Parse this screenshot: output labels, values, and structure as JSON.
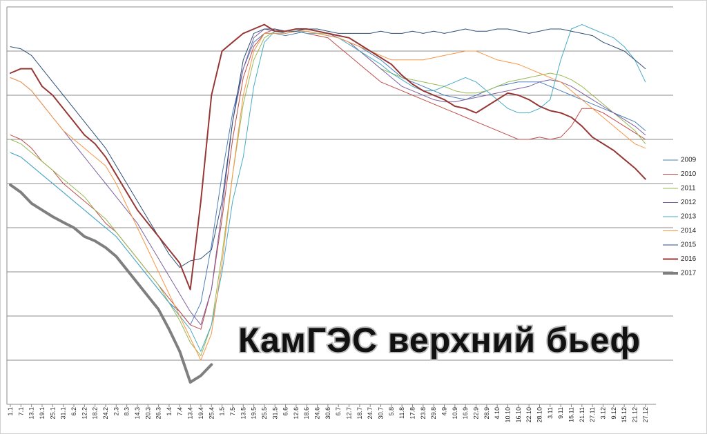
{
  "chart_data": {
    "type": "line",
    "title": "КамГЭС верхний бьеф",
    "categories": [
      "1.1",
      "7.1",
      "13.1",
      "19.1",
      "25.1",
      "31.1",
      "6.2",
      "12.2",
      "18.2",
      "24.2",
      "2.3",
      "8.3",
      "14.3",
      "20.3",
      "26.3",
      "1.4",
      "7.4",
      "13.4",
      "19.4",
      "25.4",
      "1.5",
      "7.5",
      "13.5",
      "19.5",
      "25.5",
      "31.5",
      "6.6",
      "12.6",
      "18.6",
      "24.6",
      "30.6",
      "6.7",
      "12.7",
      "18.7",
      "24.7",
      "30.7",
      "5.8",
      "11.8",
      "17.8",
      "23.8",
      "29.8",
      "4.9",
      "10.9",
      "16.9",
      "22.9",
      "28.9",
      "4.10",
      "10.10",
      "16.10",
      "22.10",
      "28.10",
      "3.11",
      "9.11",
      "15.11",
      "21.11",
      "27.11",
      "3.12",
      "9.12",
      "15.12",
      "21.12",
      "27.12"
    ],
    "ylim": [
      0,
      9
    ],
    "grid_lines": [
      1,
      2,
      3,
      4,
      5,
      6,
      7,
      8,
      9
    ],
    "series": [
      {
        "name": "2009",
        "color": "#4a7ebb",
        "width": 1,
        "values": [
          5.7,
          5.6,
          5.4,
          5.2,
          5.0,
          4.8,
          4.6,
          4.4,
          4.2,
          4.0,
          3.8,
          3.5,
          3.2,
          2.9,
          2.6,
          2.3,
          2.1,
          1.8,
          2.3,
          3.6,
          5.2,
          6.6,
          7.6,
          8.2,
          8.4,
          8.4,
          8.35,
          8.4,
          8.45,
          8.4,
          8.35,
          8.3,
          8.2,
          8.1,
          7.95,
          7.8,
          7.6,
          7.4,
          7.3,
          7.2,
          7.1,
          7.0,
          6.95,
          6.9,
          7.0,
          7.1,
          7.2,
          7.25,
          7.3,
          7.3,
          7.3,
          7.2,
          7.1,
          7.0,
          6.9,
          6.8,
          6.7,
          6.6,
          6.5,
          6.4,
          6.2
        ]
      },
      {
        "name": "2010",
        "color": "#be4b48",
        "width": 1,
        "values": [
          6.1,
          6.0,
          5.8,
          5.5,
          5.3,
          5.0,
          4.8,
          4.6,
          4.4,
          4.1,
          3.9,
          3.6,
          3.3,
          3.0,
          2.7,
          2.4,
          2.1,
          1.8,
          1.7,
          2.6,
          4.2,
          6.0,
          7.4,
          8.1,
          8.4,
          8.5,
          8.4,
          8.45,
          8.4,
          8.35,
          8.3,
          8.1,
          7.9,
          7.7,
          7.5,
          7.3,
          7.2,
          7.1,
          7.0,
          6.9,
          6.8,
          6.7,
          6.6,
          6.5,
          6.4,
          6.3,
          6.2,
          6.1,
          6.0,
          6.0,
          6.05,
          6.0,
          6.05,
          6.3,
          6.7,
          6.7,
          6.6,
          6.45,
          6.3,
          6.15,
          6.0
        ]
      },
      {
        "name": "2011",
        "color": "#98b954",
        "width": 1,
        "values": [
          6.0,
          5.9,
          5.7,
          5.5,
          5.3,
          5.1,
          4.9,
          4.7,
          4.4,
          4.2,
          3.9,
          3.6,
          3.3,
          3.0,
          2.7,
          2.3,
          1.9,
          1.4,
          1.1,
          1.8,
          3.4,
          5.2,
          6.8,
          7.8,
          8.3,
          8.45,
          8.4,
          8.45,
          8.45,
          8.4,
          8.4,
          8.3,
          8.2,
          8.0,
          7.8,
          7.6,
          7.5,
          7.4,
          7.35,
          7.3,
          7.25,
          7.2,
          7.1,
          7.05,
          7.05,
          7.1,
          7.2,
          7.3,
          7.35,
          7.4,
          7.45,
          7.5,
          7.45,
          7.35,
          7.2,
          7.0,
          6.8,
          6.6,
          6.4,
          6.2,
          5.9
        ]
      },
      {
        "name": "2012",
        "color": "#7d60a0",
        "width": 1,
        "values": [
          7.4,
          7.3,
          7.1,
          6.8,
          6.5,
          6.2,
          5.9,
          5.6,
          5.3,
          5.0,
          4.7,
          4.4,
          4.1,
          3.7,
          3.3,
          2.9,
          2.5,
          2.1,
          1.8,
          2.6,
          4.4,
          6.4,
          7.6,
          8.3,
          8.5,
          8.45,
          8.45,
          8.5,
          8.5,
          8.45,
          8.4,
          8.3,
          8.2,
          8.0,
          7.8,
          7.6,
          7.4,
          7.2,
          7.1,
          7.0,
          6.9,
          6.85,
          6.85,
          6.9,
          6.95,
          7.0,
          7.05,
          7.1,
          7.15,
          7.2,
          7.3,
          7.35,
          7.3,
          7.2,
          7.05,
          6.9,
          6.75,
          6.6,
          6.45,
          6.3,
          6.1
        ]
      },
      {
        "name": "2013",
        "color": "#46aac5",
        "width": 1,
        "values": [
          5.7,
          5.6,
          5.4,
          5.2,
          5.0,
          4.8,
          4.6,
          4.4,
          4.2,
          4.0,
          3.8,
          3.5,
          3.2,
          2.9,
          2.6,
          2.3,
          2.0,
          1.7,
          1.2,
          1.8,
          3.0,
          4.6,
          5.6,
          7.2,
          8.2,
          8.45,
          8.4,
          8.45,
          8.4,
          8.4,
          8.35,
          8.3,
          8.15,
          8.0,
          7.85,
          7.7,
          7.5,
          7.35,
          7.2,
          7.1,
          7.1,
          7.2,
          7.3,
          7.4,
          7.3,
          7.1,
          6.9,
          6.7,
          6.6,
          6.6,
          6.7,
          6.9,
          7.8,
          8.5,
          8.6,
          8.5,
          8.4,
          8.3,
          8.1,
          7.8,
          7.3
        ]
      },
      {
        "name": "2014",
        "color": "#f79646",
        "width": 1,
        "values": [
          7.4,
          7.3,
          7.1,
          6.8,
          6.5,
          6.2,
          6.0,
          5.8,
          5.6,
          5.4,
          5.0,
          4.5,
          4.0,
          3.5,
          3.0,
          2.5,
          2.0,
          1.5,
          1.0,
          1.6,
          3.2,
          5.2,
          7.0,
          8.0,
          8.4,
          8.4,
          8.4,
          8.45,
          8.45,
          8.4,
          8.35,
          8.3,
          8.2,
          8.1,
          8.0,
          7.9,
          7.8,
          7.8,
          7.8,
          7.8,
          7.85,
          7.9,
          7.95,
          8.0,
          8.0,
          7.9,
          7.8,
          7.75,
          7.7,
          7.6,
          7.5,
          7.4,
          7.3,
          7.1,
          6.9,
          6.7,
          6.5,
          6.3,
          6.1,
          5.9,
          5.8
        ]
      },
      {
        "name": "2015",
        "color": "#2c4d75",
        "width": 1,
        "values": [
          8.1,
          8.05,
          7.9,
          7.6,
          7.3,
          7.0,
          6.7,
          6.4,
          6.1,
          5.8,
          5.4,
          5.0,
          4.6,
          4.2,
          3.8,
          3.4,
          3.1,
          3.25,
          3.3,
          3.5,
          4.6,
          6.4,
          7.8,
          8.4,
          8.5,
          8.5,
          8.45,
          8.45,
          8.5,
          8.5,
          8.45,
          8.4,
          8.4,
          8.4,
          8.4,
          8.45,
          8.4,
          8.4,
          8.45,
          8.4,
          8.45,
          8.4,
          8.45,
          8.5,
          8.45,
          8.45,
          8.5,
          8.5,
          8.45,
          8.4,
          8.45,
          8.5,
          8.5,
          8.45,
          8.4,
          8.35,
          8.2,
          8.1,
          8.0,
          7.8,
          7.6
        ]
      },
      {
        "name": "2016",
        "color": "#953735",
        "width": 2,
        "values": [
          7.5,
          7.6,
          7.6,
          7.2,
          7.0,
          6.7,
          6.4,
          6.1,
          5.9,
          5.6,
          5.2,
          4.8,
          4.4,
          4.1,
          3.8,
          3.5,
          3.2,
          2.6,
          4.6,
          7.0,
          8.0,
          8.2,
          8.4,
          8.5,
          8.6,
          8.45,
          8.45,
          8.5,
          8.5,
          8.45,
          8.4,
          8.35,
          8.3,
          8.15,
          8.0,
          7.85,
          7.7,
          7.45,
          7.25,
          7.1,
          7.0,
          6.9,
          6.75,
          6.7,
          6.6,
          6.75,
          6.9,
          7.05,
          7.0,
          6.9,
          6.75,
          6.65,
          6.6,
          6.5,
          6.3,
          6.05,
          5.9,
          5.75,
          5.55,
          5.35,
          5.1
        ]
      },
      {
        "name": "2017",
        "color": "#7f7f7f",
        "width": 4,
        "values": [
          4.97,
          4.8,
          4.55,
          4.4,
          4.25,
          4.12,
          4.0,
          3.8,
          3.7,
          3.55,
          3.35,
          3.05,
          2.75,
          2.45,
          2.15,
          1.7,
          1.2,
          0.5,
          0.65,
          0.9,
          null,
          null,
          null,
          null,
          null,
          null,
          null,
          null,
          null,
          null,
          null,
          null,
          null,
          null,
          null,
          null,
          null,
          null,
          null,
          null,
          null,
          null,
          null,
          null,
          null,
          null,
          null,
          null,
          null,
          null,
          null,
          null,
          null,
          null,
          null,
          null,
          null,
          null,
          null,
          null,
          null
        ]
      }
    ]
  }
}
